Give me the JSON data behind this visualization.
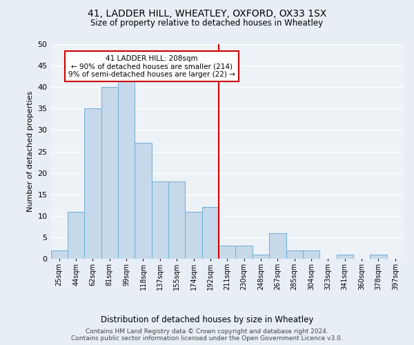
{
  "title": "41, LADDER HILL, WHEATLEY, OXFORD, OX33 1SX",
  "subtitle": "Size of property relative to detached houses in Wheatley",
  "xlabel": "Distribution of detached houses by size in Wheatley",
  "ylabel": "Number of detached properties",
  "bar_labels": [
    "25sqm",
    "44sqm",
    "62sqm",
    "81sqm",
    "99sqm",
    "118sqm",
    "137sqm",
    "155sqm",
    "174sqm",
    "192sqm",
    "211sqm",
    "230sqm",
    "248sqm",
    "267sqm",
    "285sqm",
    "304sqm",
    "323sqm",
    "341sqm",
    "360sqm",
    "378sqm",
    "397sqm"
  ],
  "bar_values": [
    2,
    11,
    35,
    40,
    42,
    27,
    18,
    18,
    11,
    12,
    3,
    3,
    1,
    6,
    2,
    2,
    0,
    1,
    0,
    1,
    0
  ],
  "bar_color": "#c6d9ea",
  "bar_edge_color": "#6baed6",
  "ylim": [
    0,
    50
  ],
  "yticks": [
    0,
    5,
    10,
    15,
    20,
    25,
    30,
    35,
    40,
    45,
    50
  ],
  "vline_x_index": 9.5,
  "annotation_text": "41 LADDER HILL: 208sqm\n← 90% of detached houses are smaller (214)\n9% of semi-detached houses are larger (22) →",
  "annotation_box_color": "#ffffff",
  "annotation_box_edge": "#cc0000",
  "vline_color": "#cc0000",
  "footer_line1": "Contains HM Land Registry data © Crown copyright and database right 2024.",
  "footer_line2": "Contains public sector information licensed under the Open Government Licence v3.0.",
  "bg_color": "#e8eef5",
  "plot_bg_color": "#edf2f7",
  "grid_color": "#ffffff"
}
